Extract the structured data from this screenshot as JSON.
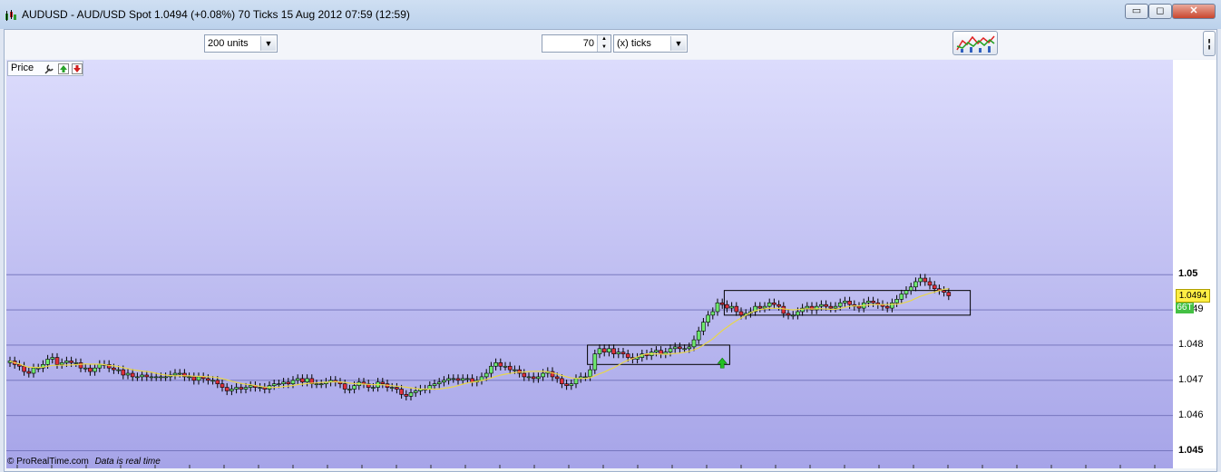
{
  "window": {
    "title": "AUDUSD - AUD/USD Spot    1.0494 (+0.08%)    70 Ticks  15 Aug 2012 07:59 (12:59)",
    "minimize_label": "▭",
    "maximize_label": "◻",
    "close_label": "✕"
  },
  "toolbar": {
    "units_select": "200 units",
    "ticks_value": "70",
    "ticks_select": "(x) ticks",
    "side_button_label": "¦"
  },
  "chart_panel": {
    "label": "Price"
  },
  "price_axis": {
    "current_price": "1.0494",
    "tick_count_badge": "66T"
  },
  "footer": {
    "brand": "© ProRealTime.com",
    "status": "Data is real time"
  },
  "colors": {
    "up_candle": "#6ee86e",
    "down_candle": "#e0303b",
    "moving_average": "#e8d64a",
    "current_price_bg": "#ffee44",
    "tick_badge_bg": "#44c044",
    "chart_bg_top": "#dcdcfc",
    "chart_bg_bottom": "#a6a4e8"
  },
  "chart_data": {
    "type": "candlestick",
    "ylim": [
      1.0445,
      1.0561
    ],
    "y_ticks": [
      {
        "value": 1.05,
        "label": "1.05",
        "bold": true
      },
      {
        "value": 1.049,
        "label": "1.049",
        "bold": false
      },
      {
        "value": 1.048,
        "label": "1.048",
        "bold": false
      },
      {
        "value": 1.047,
        "label": "1.047",
        "bold": false
      },
      {
        "value": 1.046,
        "label": "1.046",
        "bold": false
      },
      {
        "value": 1.045,
        "label": "1.045",
        "bold": true
      }
    ],
    "closes": [
      1.04755,
      1.04745,
      1.0474,
      1.04725,
      1.0472,
      1.04735,
      1.04735,
      1.04745,
      1.0476,
      1.04765,
      1.04745,
      1.0475,
      1.04755,
      1.0475,
      1.0475,
      1.04735,
      1.04735,
      1.04725,
      1.04735,
      1.04745,
      1.04745,
      1.04735,
      1.0473,
      1.0473,
      1.04715,
      1.0472,
      1.0471,
      1.0471,
      1.04715,
      1.0471,
      1.0471,
      1.0471,
      1.0471,
      1.0471,
      1.04715,
      1.0472,
      1.0472,
      1.0471,
      1.0471,
      1.047,
      1.0471,
      1.04705,
      1.047,
      1.047,
      1.0469,
      1.0468,
      1.0467,
      1.04675,
      1.0468,
      1.04675,
      1.0468,
      1.04685,
      1.0468,
      1.0468,
      1.04675,
      1.04685,
      1.0469,
      1.0469,
      1.04695,
      1.0469,
      1.047,
      1.04705,
      1.04695,
      1.04705,
      1.0469,
      1.0469,
      1.0469,
      1.04695,
      1.047,
      1.04695,
      1.0469,
      1.04675,
      1.04675,
      1.04685,
      1.04695,
      1.0469,
      1.0468,
      1.0468,
      1.04695,
      1.0469,
      1.0468,
      1.0468,
      1.04675,
      1.0466,
      1.04655,
      1.04665,
      1.0467,
      1.04675,
      1.04675,
      1.04685,
      1.0469,
      1.04695,
      1.047,
      1.04705,
      1.04705,
      1.047,
      1.04705,
      1.04705,
      1.04695,
      1.047,
      1.0471,
      1.0472,
      1.0474,
      1.0475,
      1.0474,
      1.0474,
      1.0473,
      1.0473,
      1.0472,
      1.0471,
      1.0471,
      1.04705,
      1.0471,
      1.0472,
      1.04725,
      1.0471,
      1.04705,
      1.0469,
      1.04685,
      1.0469,
      1.04705,
      1.0471,
      1.0471,
      1.0473,
      1.04775,
      1.0479,
      1.0478,
      1.0479,
      1.04775,
      1.0478,
      1.04775,
      1.04765,
      1.0476,
      1.04765,
      1.04775,
      1.0477,
      1.0478,
      1.04785,
      1.04775,
      1.0478,
      1.0479,
      1.04795,
      1.0479,
      1.0479,
      1.04795,
      1.04815,
      1.0484,
      1.04865,
      1.04885,
      1.04895,
      1.0492,
      1.04915,
      1.04905,
      1.0491,
      1.04895,
      1.04885,
      1.0489,
      1.04895,
      1.0491,
      1.04905,
      1.0491,
      1.0492,
      1.04915,
      1.0491,
      1.0489,
      1.04885,
      1.04885,
      1.04895,
      1.04905,
      1.0491,
      1.049,
      1.0491,
      1.04915,
      1.0491,
      1.04905,
      1.0491,
      1.0492,
      1.04925,
      1.04915,
      1.0491,
      1.04905,
      1.0492,
      1.04925,
      1.0492,
      1.04915,
      1.0491,
      1.04905,
      1.0492,
      1.0493,
      1.04945,
      1.04955,
      1.04965,
      1.0498,
      1.0499,
      1.0498,
      1.0497,
      1.0496,
      1.04955,
      1.0495,
      1.0494
    ],
    "annotations": [
      {
        "type": "rectangle",
        "x1_index": 123,
        "x2_index": 152,
        "y1": 1.048,
        "y2": 1.04745
      },
      {
        "type": "rectangle",
        "x1_index": 152,
        "x2_index": 203,
        "y1": 1.04955,
        "y2": 1.04885
      },
      {
        "type": "buy-arrow",
        "x_index": 151,
        "y": 1.04758
      }
    ]
  }
}
